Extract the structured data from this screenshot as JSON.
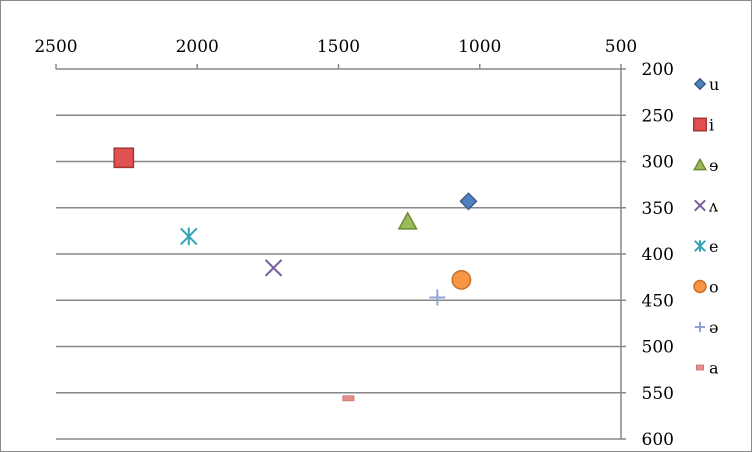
{
  "chart_data": {
    "type": "scatter",
    "title": "",
    "xlabel": "",
    "ylabel": "",
    "x_axis": {
      "min": 500,
      "max": 2500,
      "reversed": true,
      "position": "top",
      "ticks": [
        2500,
        2000,
        1500,
        1000,
        500
      ]
    },
    "y_axis": {
      "min": 200,
      "max": 600,
      "reversed": true,
      "position": "right",
      "ticks": [
        200,
        250,
        300,
        350,
        400,
        450,
        500,
        550,
        600
      ]
    },
    "grid": "horizontal",
    "legend_position": "right",
    "series": [
      {
        "name": "u",
        "x": 1040,
        "y": 343,
        "marker": "diamond",
        "color": "#4f81bd",
        "stroke": "#3a5f8c"
      },
      {
        "name": "i",
        "x": 2260,
        "y": 296,
        "marker": "square",
        "color": "#e0514f",
        "stroke": "#a33634"
      },
      {
        "name": "ɘ",
        "x": 1255,
        "y": 365,
        "marker": "triangle",
        "color": "#9bbb59",
        "stroke": "#6b8a35"
      },
      {
        "name": "ʌ",
        "x": 1730,
        "y": 415,
        "marker": "x",
        "color": "#7a5fa0",
        "stroke": "#7a5fa0"
      },
      {
        "name": "e",
        "x": 2030,
        "y": 381,
        "marker": "star",
        "color": "#31a3b6",
        "stroke": "#31a3b6"
      },
      {
        "name": "o",
        "x": 1065,
        "y": 428,
        "marker": "circle",
        "color": "#f79646",
        "stroke": "#c9702a"
      },
      {
        "name": "ə",
        "x": 1150,
        "y": 447,
        "marker": "plus",
        "color": "#8da6d8",
        "stroke": "#8da6d8"
      },
      {
        "name": "a",
        "x": 1465,
        "y": 556,
        "marker": "dash",
        "color": "#e6908e",
        "stroke": "#e6908e"
      }
    ]
  }
}
